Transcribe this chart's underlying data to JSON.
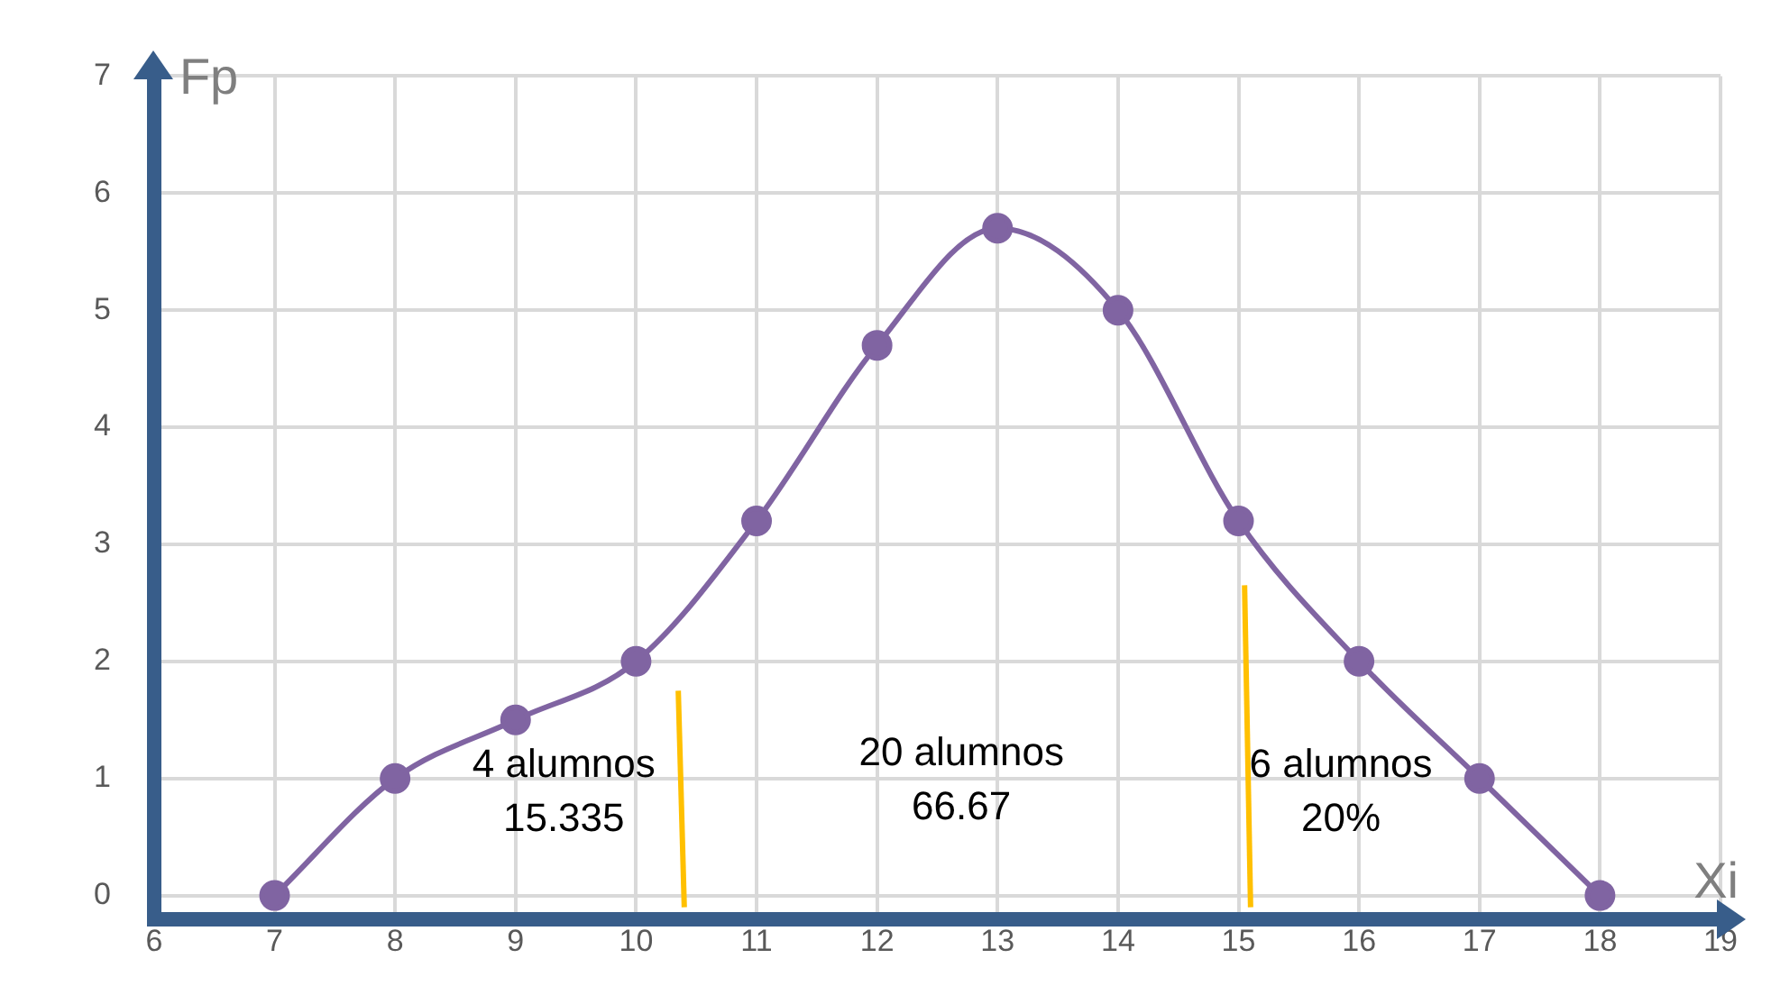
{
  "chart_data": {
    "type": "line",
    "xlabel": "Xi",
    "ylabel": "Fp",
    "x": [
      7,
      8,
      9,
      10,
      11,
      12,
      13,
      14,
      15,
      16,
      17,
      18
    ],
    "series": [
      {
        "color": "#8064a2",
        "values": [
          0,
          1,
          1.5,
          2,
          3.2,
          4.7,
          5.7,
          5,
          3.2,
          2,
          1,
          0
        ]
      },
      {
        "type": "line",
        "color": "#ffc000",
        "x": [
          10.35,
          10.4
        ],
        "values": [
          1.75,
          -0.1
        ],
        "marker": "none"
      },
      {
        "type": "line",
        "color": "#ffc000",
        "x": [
          15.05,
          15.1
        ],
        "values": [
          2.65,
          -0.1
        ],
        "marker": "none"
      }
    ],
    "xlim": [
      6,
      19
    ],
    "xticks": [
      6,
      7,
      8,
      9,
      10,
      11,
      12,
      13,
      14,
      15,
      16,
      17,
      18,
      19
    ],
    "ylim": [
      -0.2,
      7
    ],
    "yticks": [
      0,
      1,
      2,
      3,
      4,
      5,
      6,
      7
    ],
    "grid": true,
    "legend": false,
    "marker": "circle",
    "annotations": [
      "4 alumnos\n15.335",
      "20 alumnos\n66.67",
      "6 alumnos\n20%"
    ]
  }
}
